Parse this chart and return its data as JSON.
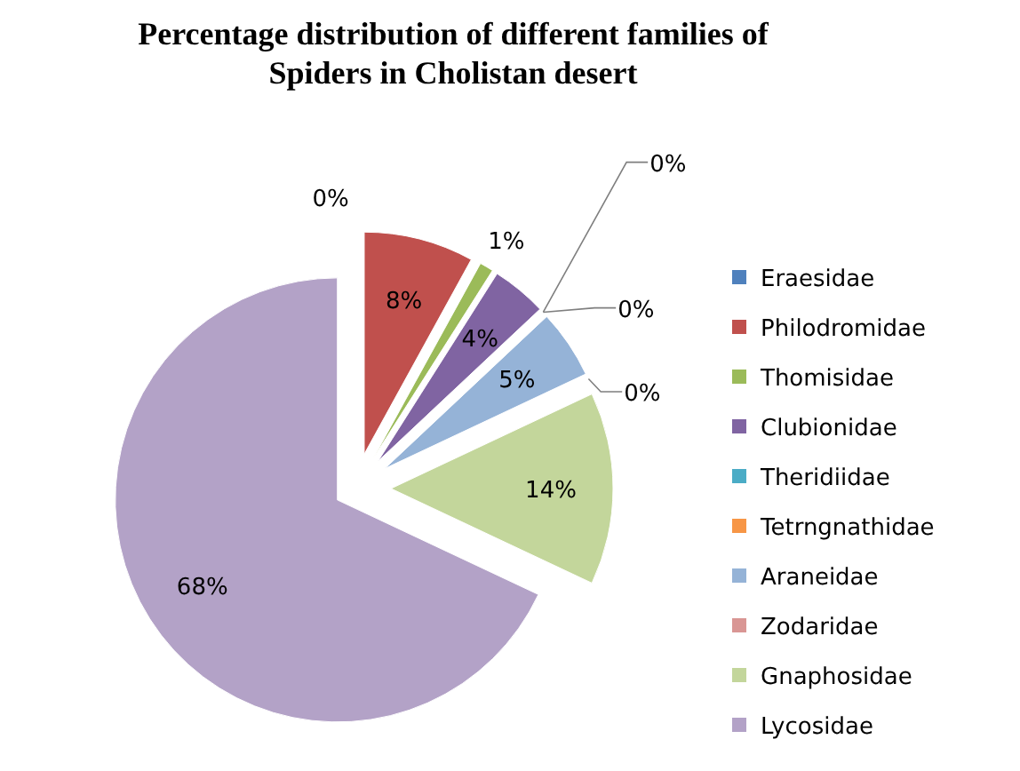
{
  "chart_data": {
    "type": "pie",
    "title": "Percentage distribution of different families of Spiders in Cholistan desert",
    "categories": [
      "Eraesidae",
      "Philodromidae",
      "Thomisidae",
      "Clubionidae",
      "Theridiidae",
      "Tetrngnathidae",
      "Araneidae",
      "Zodaridae",
      "Gnaphosidae",
      "Lycosidae"
    ],
    "values": [
      0,
      8,
      1,
      4,
      0,
      0,
      5,
      0,
      14,
      68
    ],
    "colors": [
      "#4f81bd",
      "#c0504d",
      "#9bbb59",
      "#8064a2",
      "#4bacc6",
      "#f79646",
      "#95b3d7",
      "#d99694",
      "#c3d69b",
      "#b3a2c7"
    ],
    "value_labels": [
      "0%",
      "8%",
      "1%",
      "4%",
      "0%",
      "0%",
      "5%",
      "0%",
      "14%",
      "68%"
    ],
    "legend": "right"
  }
}
